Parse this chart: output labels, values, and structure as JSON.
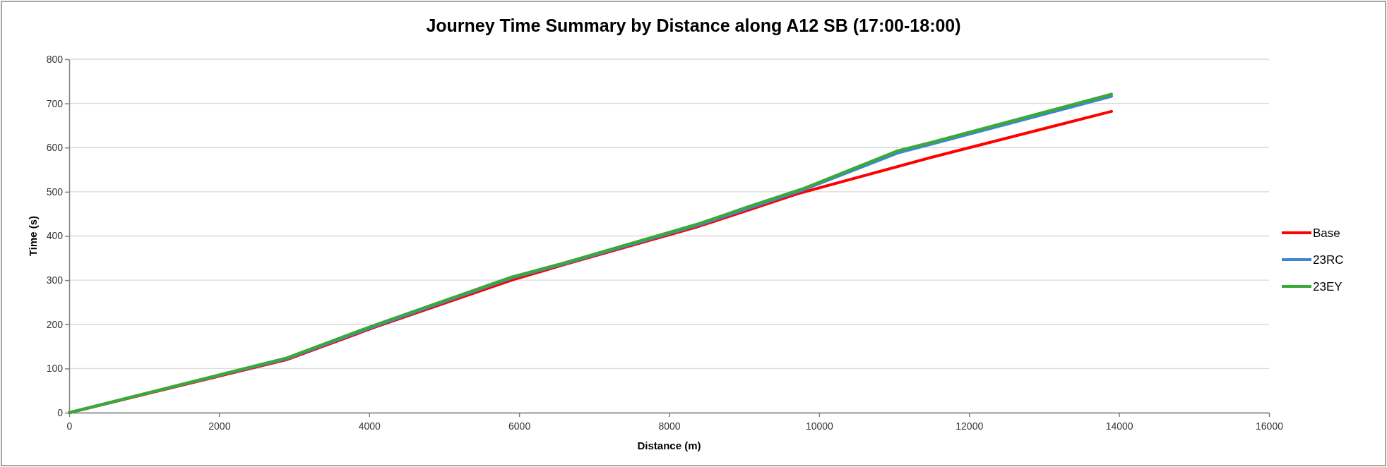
{
  "chart_data": {
    "type": "line",
    "title": "Journey Time Summary by Distance along A12 SB (17:00-18:00)",
    "xlabel": "Distance (m)",
    "ylabel": "Time (s)",
    "xlim": [
      0,
      16000
    ],
    "xticks": [
      0,
      2000,
      4000,
      6000,
      8000,
      10000,
      12000,
      14000,
      16000
    ],
    "ylim": [
      0,
      800
    ],
    "yticks": [
      0,
      100,
      200,
      300,
      400,
      500,
      600,
      700,
      800
    ],
    "grid": "y",
    "legend": "right",
    "marker": "none",
    "line_style": "solid",
    "series": [
      {
        "name": "Base",
        "color": "#ff0000",
        "x": [
          0,
          2900,
          4100,
          5900,
          6600,
          8400,
          9050,
          9700,
          11500,
          13900
        ],
        "values": [
          0,
          120,
          195,
          300,
          335,
          422,
          458,
          495,
          578,
          682
        ]
      },
      {
        "name": "23RC",
        "color": "#3f86cc",
        "x": [
          0,
          2900,
          4100,
          5900,
          6600,
          8400,
          9050,
          9800,
          11050,
          11500,
          13900
        ],
        "values": [
          0,
          122,
          197,
          305,
          337,
          425,
          462,
          505,
          588,
          608,
          716
        ]
      },
      {
        "name": "23EY",
        "color": "#3aaa35",
        "x": [
          0,
          2900,
          4100,
          5900,
          6600,
          8400,
          9050,
          9800,
          11050,
          11500,
          13900
        ],
        "values": [
          0,
          124,
          200,
          307,
          339,
          428,
          466,
          508,
          593,
          612,
          721
        ]
      }
    ]
  }
}
